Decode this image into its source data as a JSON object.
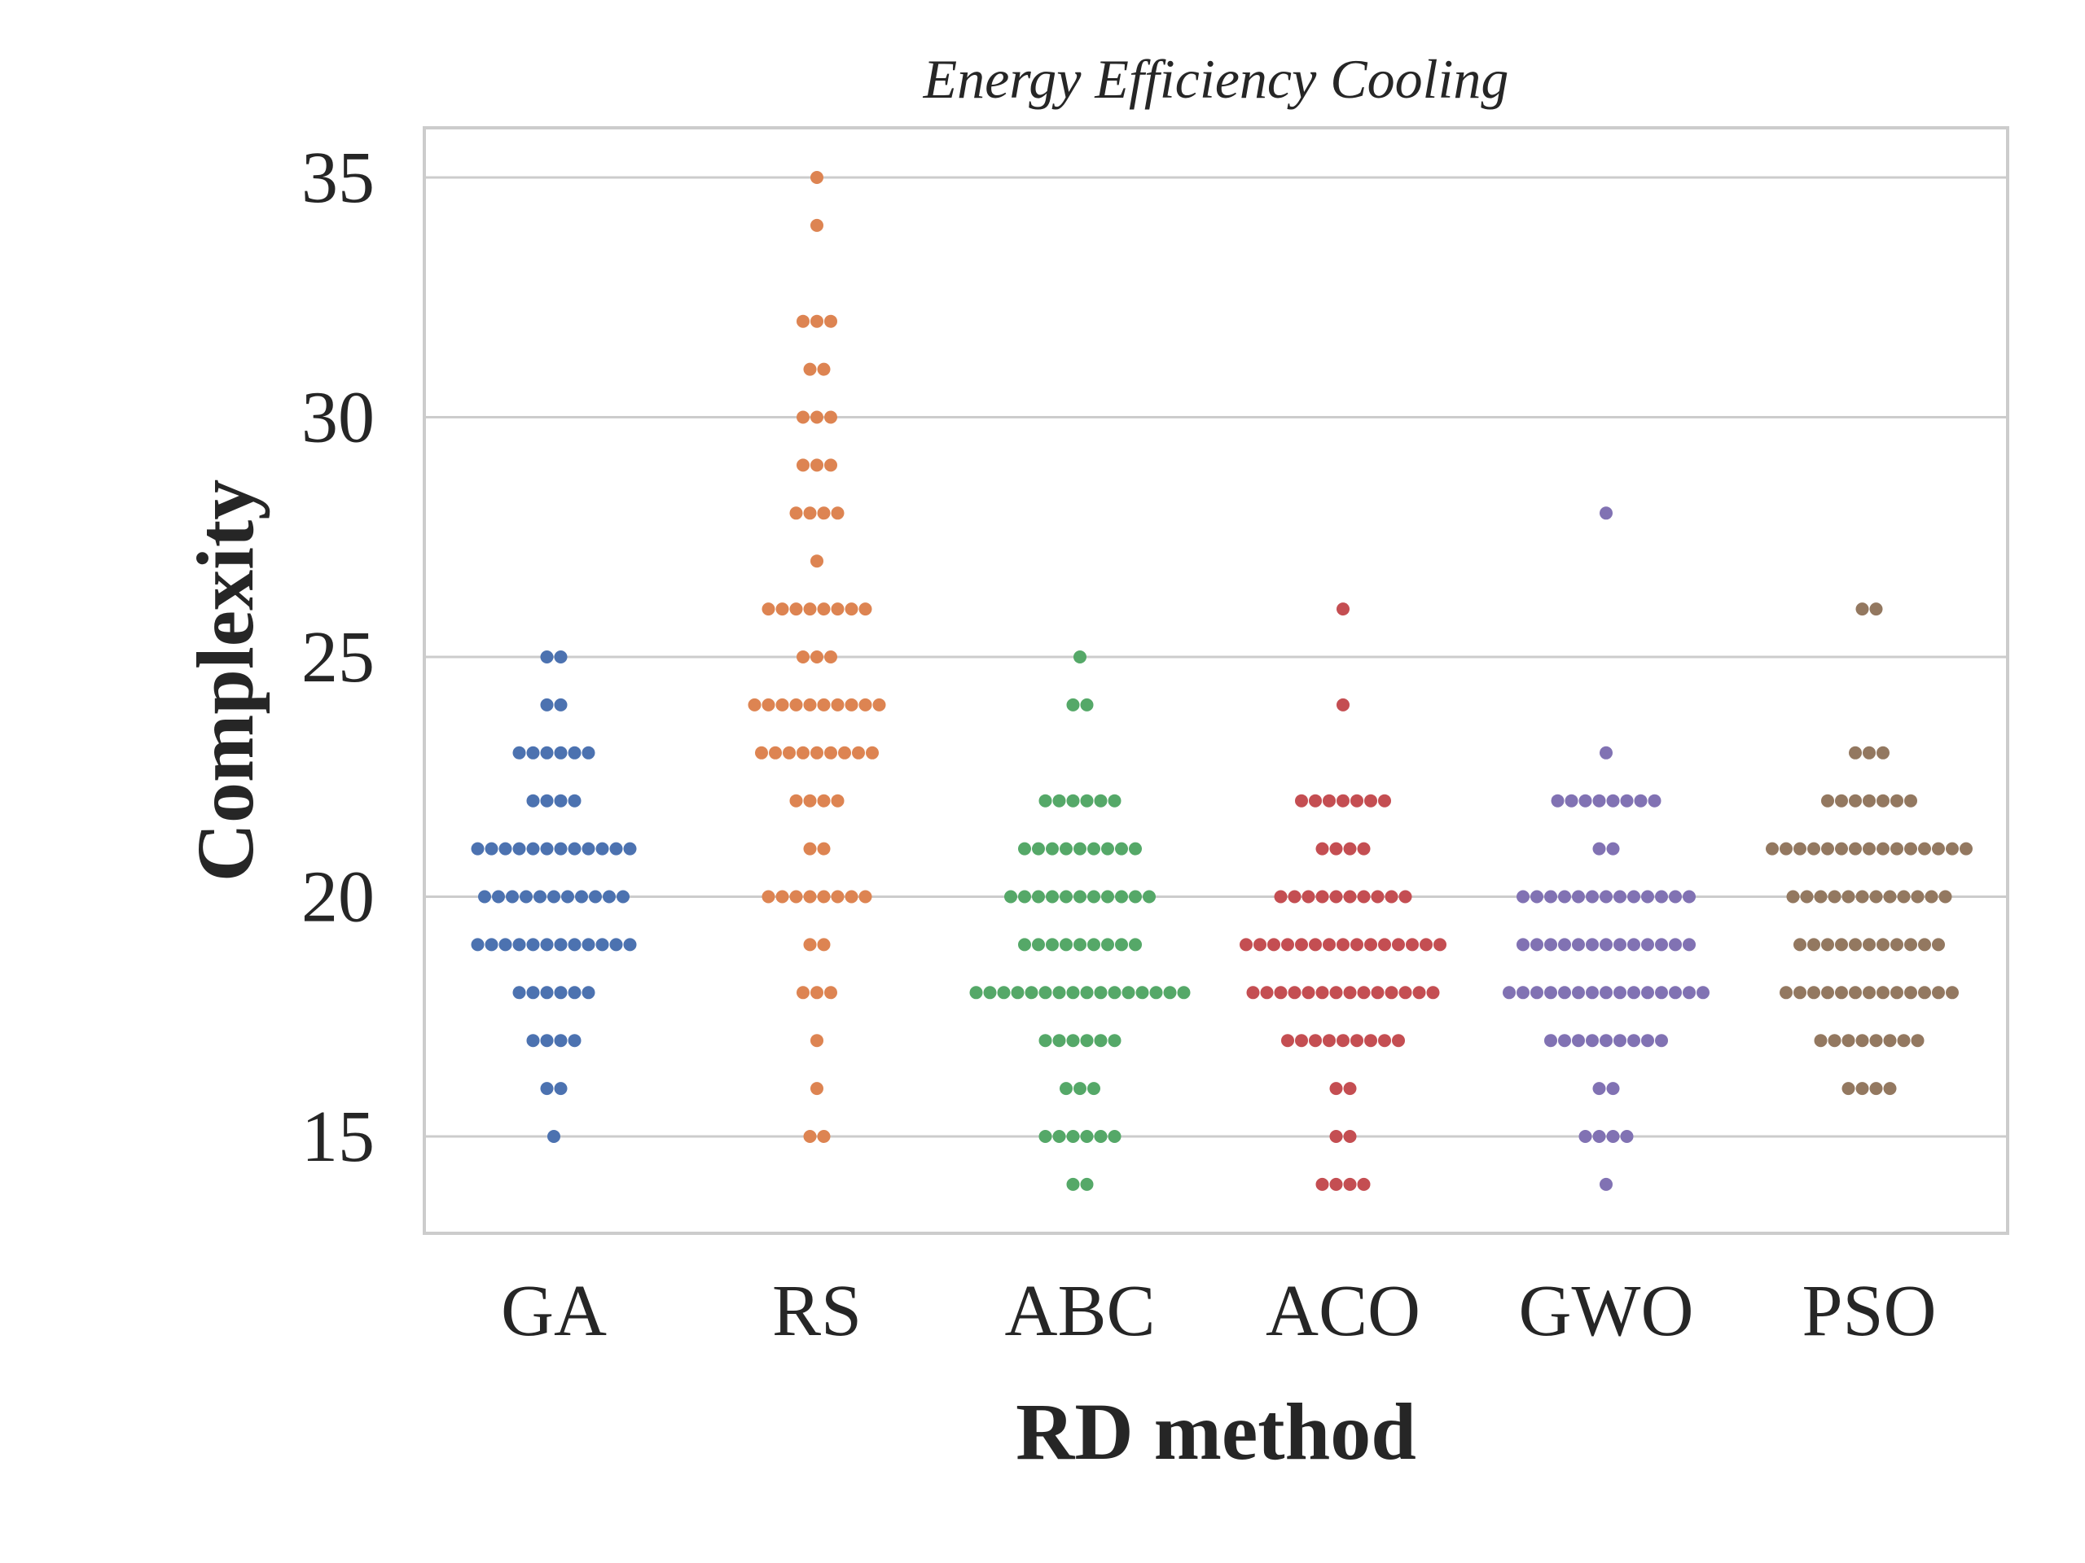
{
  "chart_data": {
    "type": "scatter",
    "subtype": "swarm",
    "title": "Energy Efficiency Cooling",
    "xlabel": "RD method",
    "ylabel": "Complexity",
    "ylim": [
      13,
      36
    ],
    "yticks": [
      15,
      20,
      25,
      30,
      35
    ],
    "grid": "horizontal",
    "categories": [
      "GA",
      "RS",
      "ABC",
      "ACO",
      "GWO",
      "PSO"
    ],
    "series": [
      {
        "category": "GA",
        "color": "#4c72b0",
        "values": [
          {
            "y": 15,
            "count": 1
          },
          {
            "y": 16,
            "count": 2
          },
          {
            "y": 17,
            "count": 4
          },
          {
            "y": 18,
            "count": 6
          },
          {
            "y": 19,
            "count": 12
          },
          {
            "y": 20,
            "count": 11
          },
          {
            "y": 21,
            "count": 12
          },
          {
            "y": 22,
            "count": 4
          },
          {
            "y": 23,
            "count": 6
          },
          {
            "y": 24,
            "count": 2
          },
          {
            "y": 25,
            "count": 2
          }
        ]
      },
      {
        "category": "RS",
        "color": "#dd8452",
        "values": [
          {
            "y": 15,
            "count": 2
          },
          {
            "y": 16,
            "count": 1
          },
          {
            "y": 17,
            "count": 1
          },
          {
            "y": 18,
            "count": 3
          },
          {
            "y": 19,
            "count": 2
          },
          {
            "y": 20,
            "count": 8
          },
          {
            "y": 21,
            "count": 2
          },
          {
            "y": 22,
            "count": 4
          },
          {
            "y": 23,
            "count": 9
          },
          {
            "y": 24,
            "count": 10
          },
          {
            "y": 25,
            "count": 3
          },
          {
            "y": 26,
            "count": 8
          },
          {
            "y": 27,
            "count": 1
          },
          {
            "y": 28,
            "count": 4
          },
          {
            "y": 29,
            "count": 3
          },
          {
            "y": 30,
            "count": 3
          },
          {
            "y": 31,
            "count": 2
          },
          {
            "y": 32,
            "count": 3
          },
          {
            "y": 34,
            "count": 1
          },
          {
            "y": 35,
            "count": 1
          }
        ]
      },
      {
        "category": "ABC",
        "color": "#55a868",
        "values": [
          {
            "y": 14,
            "count": 2
          },
          {
            "y": 15,
            "count": 6
          },
          {
            "y": 16,
            "count": 3
          },
          {
            "y": 17,
            "count": 6
          },
          {
            "y": 18,
            "count": 16
          },
          {
            "y": 19,
            "count": 9
          },
          {
            "y": 20,
            "count": 11
          },
          {
            "y": 21,
            "count": 9
          },
          {
            "y": 22,
            "count": 6
          },
          {
            "y": 24,
            "count": 2
          },
          {
            "y": 25,
            "count": 1
          }
        ]
      },
      {
        "category": "ACO",
        "color": "#c44e52",
        "values": [
          {
            "y": 14,
            "count": 4
          },
          {
            "y": 15,
            "count": 2
          },
          {
            "y": 16,
            "count": 2
          },
          {
            "y": 17,
            "count": 9
          },
          {
            "y": 18,
            "count": 14
          },
          {
            "y": 19,
            "count": 15
          },
          {
            "y": 20,
            "count": 10
          },
          {
            "y": 21,
            "count": 4
          },
          {
            "y": 22,
            "count": 7
          },
          {
            "y": 24,
            "count": 1
          },
          {
            "y": 26,
            "count": 1
          }
        ]
      },
      {
        "category": "GWO",
        "color": "#8172b3",
        "values": [
          {
            "y": 14,
            "count": 1
          },
          {
            "y": 15,
            "count": 4
          },
          {
            "y": 16,
            "count": 2
          },
          {
            "y": 17,
            "count": 9
          },
          {
            "y": 18,
            "count": 15
          },
          {
            "y": 19,
            "count": 13
          },
          {
            "y": 20,
            "count": 13
          },
          {
            "y": 21,
            "count": 2
          },
          {
            "y": 22,
            "count": 8
          },
          {
            "y": 23,
            "count": 1
          },
          {
            "y": 28,
            "count": 1
          }
        ]
      },
      {
        "category": "PSO",
        "color": "#937860",
        "values": [
          {
            "y": 16,
            "count": 4
          },
          {
            "y": 17,
            "count": 8
          },
          {
            "y": 18,
            "count": 13
          },
          {
            "y": 19,
            "count": 11
          },
          {
            "y": 20,
            "count": 12
          },
          {
            "y": 21,
            "count": 15
          },
          {
            "y": 22,
            "count": 7
          },
          {
            "y": 23,
            "count": 3
          },
          {
            "y": 26,
            "count": 2
          }
        ]
      }
    ]
  }
}
